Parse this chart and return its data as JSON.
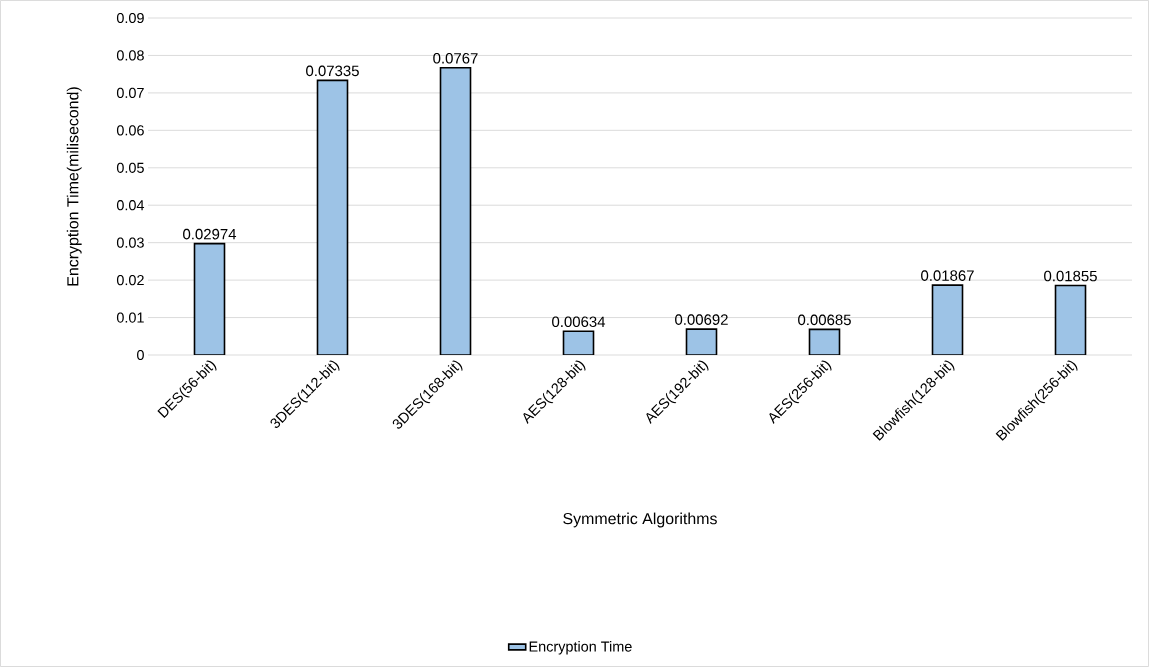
{
  "chart_data": {
    "type": "bar",
    "xlabel": "Symmetric Algorithms",
    "ylabel": "Encryption Time(milisecond)",
    "categories": [
      "DES(56-bit)",
      "3DES(112-bit)",
      "3DES(168-bit)",
      "AES(128-bit)",
      "AES(192-bit)",
      "AES(256-bit)",
      "Blowfish(128-bit)",
      "Blowfish(256-bit)"
    ],
    "series": [
      {
        "name": "Encryption Time",
        "color": "#9dc3e6",
        "values": [
          0.02974,
          0.07335,
          0.0767,
          0.00634,
          0.00692,
          0.00685,
          0.01867,
          0.01855
        ]
      }
    ],
    "ylim": [
      0,
      0.09
    ],
    "yticks": [
      0,
      0.01,
      0.02,
      0.03,
      0.04,
      0.05,
      0.06,
      0.07,
      0.08,
      0.09
    ],
    "grid": "y",
    "legend": "bottom",
    "data_labels": true
  }
}
